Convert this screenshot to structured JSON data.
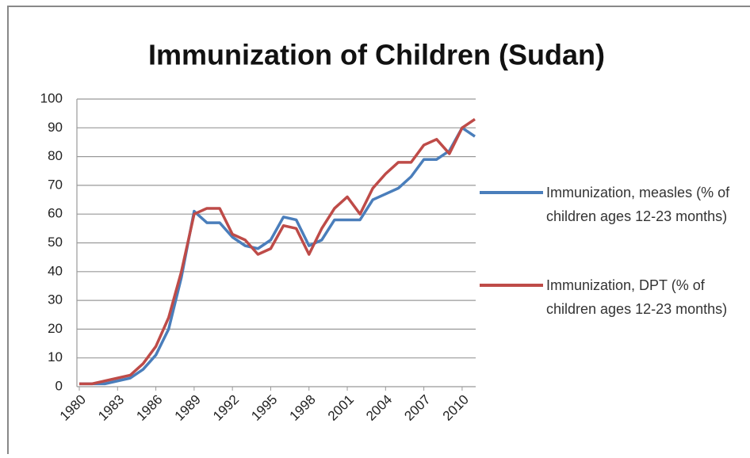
{
  "chart_data": {
    "type": "line",
    "title": "Immunization of Children (Sudan)",
    "x": [
      1980,
      1981,
      1982,
      1983,
      1984,
      1985,
      1986,
      1987,
      1988,
      1989,
      1990,
      1991,
      1992,
      1993,
      1994,
      1995,
      1996,
      1997,
      1998,
      1999,
      2000,
      2001,
      2002,
      2003,
      2004,
      2005,
      2006,
      2007,
      2008,
      2009,
      2010,
      2011
    ],
    "series": [
      {
        "name": "Immunization, measles (% of children ages 12-23 months)",
        "color": "#4a7ebb",
        "values": [
          1,
          1,
          1,
          2,
          3,
          6,
          11,
          20,
          38,
          61,
          57,
          57,
          52,
          49,
          48,
          51,
          59,
          58,
          49,
          51,
          58,
          58,
          58,
          65,
          67,
          69,
          73,
          79,
          79,
          82,
          90,
          87
        ]
      },
      {
        "name": "Immunization, DPT (% of children ages 12-23 months)",
        "color": "#be4b48",
        "values": [
          1,
          1,
          2,
          3,
          4,
          8,
          14,
          24,
          40,
          60,
          62,
          62,
          53,
          51,
          46,
          48,
          56,
          55,
          46,
          55,
          62,
          66,
          60,
          69,
          74,
          78,
          78,
          84,
          86,
          81,
          90,
          93
        ]
      }
    ],
    "xlim": [
      1980,
      2011
    ],
    "xticks": [
      1980,
      1983,
      1986,
      1989,
      1992,
      1995,
      1998,
      2001,
      2004,
      2007,
      2010
    ],
    "ylim": [
      0,
      100
    ],
    "yticks": [
      0,
      10,
      20,
      30,
      40,
      50,
      60,
      70,
      80,
      90,
      100
    ],
    "grid": true,
    "legend": "right"
  }
}
